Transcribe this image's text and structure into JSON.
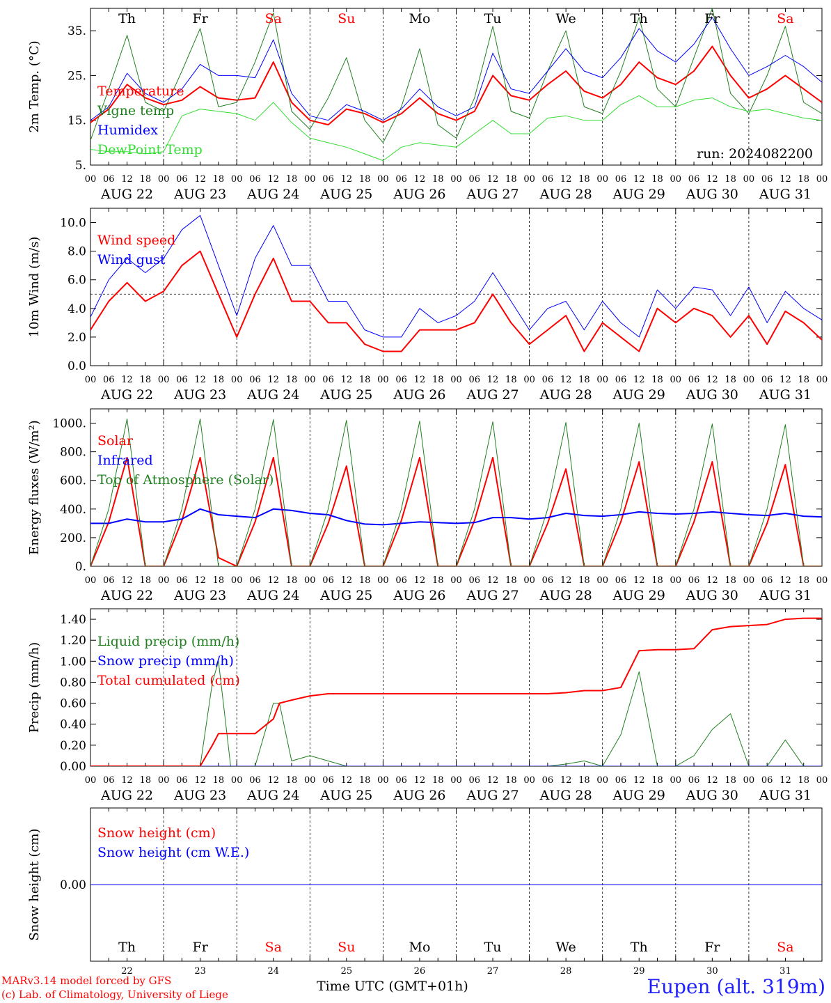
{
  "run_label": "run: 2024082200",
  "x_axis_title": "Time UTC (GMT+01h)",
  "model_credit": "MARv3.14 model forced by GFS",
  "lab_credit": "(c) Lab. of Climatology, University of Liege",
  "station_label": "Eupen (alt. 319m)",
  "colors": {
    "red": "#ff0000",
    "green": "#00a000",
    "darkgreen": "#208020",
    "blue": "#0000ff",
    "lightgreen": "#33dd33",
    "purple": "#800080"
  },
  "days": [
    {
      "abbr": "Th",
      "date": "AUG 22",
      "num": "22",
      "weekend": false
    },
    {
      "abbr": "Fr",
      "date": "AUG 23",
      "num": "23",
      "weekend": false
    },
    {
      "abbr": "Sa",
      "date": "AUG 24",
      "num": "24",
      "weekend": true
    },
    {
      "abbr": "Su",
      "date": "AUG 25",
      "num": "25",
      "weekend": true
    },
    {
      "abbr": "Mo",
      "date": "AUG 26",
      "num": "26",
      "weekend": false
    },
    {
      "abbr": "Tu",
      "date": "AUG 27",
      "num": "27",
      "weekend": false
    },
    {
      "abbr": "We",
      "date": "AUG 28",
      "num": "28",
      "weekend": false
    },
    {
      "abbr": "Th",
      "date": "AUG 29",
      "num": "29",
      "weekend": false
    },
    {
      "abbr": "Fr",
      "date": "AUG 30",
      "num": "30",
      "weekend": false
    },
    {
      "abbr": "Sa",
      "date": "AUG 31",
      "num": "31",
      "weekend": true
    }
  ],
  "hour_ticks": [
    "00",
    "06",
    "12",
    "18"
  ],
  "chart_data": [
    {
      "type": "line",
      "ylabel": "2m Temp. (°C)",
      "ylim": [
        5,
        40
      ],
      "yticks": [
        5,
        15,
        25,
        35
      ],
      "ytick_labels": [
        "5.",
        "15.",
        "25.",
        "35."
      ],
      "x_unit": "hours since AUG 22 00 UTC",
      "x": [
        0,
        6,
        12,
        18,
        24,
        30,
        36,
        42,
        48,
        54,
        60,
        66,
        72,
        78,
        84,
        90,
        96,
        102,
        108,
        114,
        120,
        126,
        132,
        138,
        144,
        150,
        156,
        162,
        168,
        174,
        180,
        186,
        192,
        198,
        204,
        210,
        216,
        222,
        228,
        234,
        240
      ],
      "series": [
        {
          "name": "Temperature",
          "color": "#ff0000",
          "width": 2,
          "values": [
            14.5,
            17.5,
            23,
            20,
            18.5,
            19.5,
            22.5,
            20,
            19.5,
            20,
            28,
            19,
            15,
            14,
            17.5,
            16.5,
            14.5,
            16.5,
            20,
            16.5,
            15,
            17,
            25,
            20.5,
            19.5,
            23,
            26,
            21.5,
            20,
            23,
            28,
            24.5,
            23,
            26,
            31.5,
            25,
            20,
            22,
            25,
            22,
            19
          ]
        },
        {
          "name": "Vigne temp",
          "color": "#208020",
          "width": 1,
          "values": [
            10.5,
            22,
            34,
            19,
            17,
            26,
            35.5,
            18,
            19,
            28,
            39,
            17,
            13,
            20,
            29,
            15,
            10,
            18,
            31,
            14,
            11,
            20,
            36,
            17,
            15.5,
            26,
            35,
            18,
            16.5,
            26,
            38,
            22,
            18,
            29,
            40,
            21,
            16.5,
            25,
            36,
            19,
            16.5
          ]
        },
        {
          "name": "Humidex",
          "color": "#0000ff",
          "width": 1,
          "values": [
            15,
            18,
            25.5,
            21,
            19,
            22,
            27.5,
            25,
            25,
            24.5,
            33,
            21,
            16,
            15,
            18.5,
            17,
            15,
            17.5,
            22,
            18,
            16,
            18,
            30,
            22,
            21,
            26,
            31,
            26,
            24.5,
            29,
            35.5,
            30.5,
            28,
            32,
            38,
            31,
            25,
            27,
            29.5,
            27,
            23.5
          ]
        },
        {
          "name": "DewPoint Temp",
          "color": "#33dd33",
          "width": 1,
          "values": [
            8.5,
            8,
            8,
            7.5,
            8,
            16,
            17.5,
            17,
            16.5,
            15,
            19,
            14.5,
            11,
            10,
            9,
            7.5,
            6,
            9,
            10,
            9.5,
            9,
            12,
            15,
            12,
            12,
            15.5,
            16,
            15,
            15,
            18.5,
            20.5,
            18,
            18,
            19.5,
            20,
            18,
            17,
            17.5,
            16.5,
            15.5,
            15
          ]
        }
      ]
    },
    {
      "type": "line",
      "ylabel": "10m Wind (m/s)",
      "ylim": [
        0,
        11
      ],
      "yticks": [
        0,
        2,
        4,
        6,
        8,
        10
      ],
      "ytick_labels": [
        "0.0",
        "2.0",
        "4.0",
        "6.0",
        "8.0",
        "10.0"
      ],
      "hline": 5,
      "x_unit": "hours since AUG 22 00 UTC",
      "x": [
        0,
        6,
        12,
        18,
        24,
        30,
        36,
        42,
        48,
        54,
        60,
        66,
        72,
        78,
        84,
        90,
        96,
        102,
        108,
        114,
        120,
        126,
        132,
        138,
        144,
        150,
        156,
        162,
        168,
        174,
        180,
        186,
        192,
        198,
        204,
        210,
        216,
        222,
        228,
        234,
        240
      ],
      "series": [
        {
          "name": "Wind speed",
          "color": "#ff0000",
          "width": 2,
          "values": [
            2.5,
            4.5,
            5.8,
            4.5,
            5.2,
            7,
            8,
            5,
            2,
            5,
            7.5,
            4.5,
            4.5,
            3,
            3,
            1.5,
            1,
            1,
            2.5,
            2.5,
            2.5,
            3,
            5,
            3,
            1.5,
            2.5,
            3.5,
            1,
            3,
            2,
            1,
            4,
            3,
            4,
            3.5,
            2,
            3.5,
            1.5,
            3.8,
            3,
            1.8
          ]
        },
        {
          "name": "Wind gust",
          "color": "#0000ff",
          "width": 1,
          "values": [
            3.4,
            6,
            7.5,
            6.5,
            7.5,
            9.5,
            10.5,
            7,
            3.5,
            7.5,
            9.8,
            7,
            7,
            4.5,
            4.5,
            2.5,
            2,
            2,
            4,
            3,
            3.5,
            4.5,
            6.5,
            4.5,
            2.5,
            4,
            4.5,
            2.5,
            4.5,
            3,
            2,
            5.3,
            4,
            5.5,
            5.3,
            3.5,
            5.5,
            3,
            5.2,
            4,
            3.2
          ]
        }
      ]
    },
    {
      "type": "line",
      "ylabel": "Energy fluxes (W/m²)",
      "ylim": [
        0,
        1100
      ],
      "yticks": [
        0,
        200,
        400,
        600,
        800,
        1000
      ],
      "ytick_labels": [
        "0.",
        "200.",
        "400.",
        "600.",
        "800.",
        "1000."
      ],
      "x_unit": "hours since AUG 22 00 UTC",
      "x": [
        0,
        6,
        12,
        18,
        24,
        30,
        36,
        42,
        48,
        54,
        60,
        66,
        72,
        78,
        84,
        90,
        96,
        102,
        108,
        114,
        120,
        126,
        132,
        138,
        144,
        150,
        156,
        162,
        168,
        174,
        180,
        186,
        192,
        198,
        204,
        210,
        216,
        222,
        228,
        234,
        240
      ],
      "series": [
        {
          "name": "Solar",
          "color": "#ff0000",
          "width": 2,
          "values": [
            0,
            310,
            760,
            0,
            0,
            320,
            760,
            60,
            0,
            310,
            760,
            0,
            0,
            300,
            700,
            0,
            0,
            320,
            760,
            0,
            0,
            320,
            760,
            0,
            0,
            300,
            680,
            0,
            0,
            310,
            730,
            0,
            0,
            310,
            730,
            0,
            0,
            300,
            710,
            0,
            0
          ]
        },
        {
          "name": "Infrared",
          "color": "#0000ff",
          "width": 2,
          "values": [
            300,
            300,
            330,
            310,
            310,
            330,
            400,
            360,
            350,
            340,
            400,
            390,
            370,
            360,
            320,
            295,
            290,
            300,
            310,
            305,
            300,
            305,
            340,
            340,
            330,
            340,
            370,
            355,
            350,
            360,
            380,
            370,
            365,
            370,
            380,
            370,
            360,
            355,
            370,
            350,
            345
          ]
        },
        {
          "name": "Top of Atmosphere (Solar)",
          "color": "#208020",
          "width": 1,
          "values": [
            0,
            400,
            1030,
            0,
            0,
            400,
            1030,
            0,
            0,
            400,
            1025,
            0,
            0,
            400,
            1020,
            0,
            0,
            400,
            1015,
            0,
            0,
            400,
            1010,
            0,
            0,
            400,
            1005,
            0,
            0,
            400,
            1000,
            0,
            0,
            400,
            995,
            0,
            0,
            400,
            990,
            0,
            0
          ]
        }
      ]
    },
    {
      "type": "line",
      "ylabel": "Precip (mm/h)",
      "ylim": [
        0,
        1.5
      ],
      "yticks": [
        0,
        0.2,
        0.4,
        0.6,
        0.8,
        1.0,
        1.2,
        1.4
      ],
      "ytick_labels": [
        "0.00",
        "0.20",
        "0.40",
        "0.60",
        "0.80",
        "1.00",
        "1.20",
        "1.40"
      ],
      "x_unit": "hours since AUG 22 00 UTC",
      "x": [
        0,
        6,
        12,
        18,
        24,
        30,
        36,
        40,
        42,
        44,
        46,
        48,
        54,
        60,
        62,
        66,
        72,
        78,
        84,
        90,
        96,
        102,
        108,
        114,
        120,
        126,
        132,
        138,
        144,
        150,
        156,
        162,
        168,
        174,
        180,
        186,
        192,
        198,
        204,
        210,
        216,
        222,
        228,
        234,
        240
      ],
      "series": [
        {
          "name": "Liquid precip (mm/h)",
          "color": "#208020",
          "width": 1,
          "values": [
            0,
            0,
            0,
            0,
            0,
            0,
            0,
            0.8,
            1.0,
            0.5,
            0,
            0,
            0,
            0.6,
            0.6,
            0.05,
            0.1,
            0.05,
            0,
            0,
            0,
            0,
            0,
            0,
            0,
            0,
            0,
            0,
            0,
            0,
            0.02,
            0.05,
            0,
            0.3,
            0.9,
            0,
            0,
            0.1,
            0.35,
            0.5,
            0,
            0,
            0.25,
            0,
            0
          ]
        },
        {
          "name": "Snow precip (mm/h)",
          "color": "#0000ff",
          "width": 1,
          "values": [
            0,
            0,
            0,
            0,
            0,
            0,
            0,
            0,
            0,
            0,
            0,
            0,
            0,
            0,
            0,
            0,
            0,
            0,
            0,
            0,
            0,
            0,
            0,
            0,
            0,
            0,
            0,
            0,
            0,
            0,
            0,
            0,
            0,
            0,
            0,
            0,
            0,
            0,
            0,
            0,
            0,
            0,
            0,
            0,
            0
          ]
        },
        {
          "name": "Total cumulated (cm)",
          "color": "#ff0000",
          "width": 2,
          "values": [
            0,
            0,
            0,
            0,
            0,
            0,
            0,
            0.2,
            0.31,
            0.31,
            0.31,
            0.31,
            0.31,
            0.45,
            0.6,
            0.63,
            0.67,
            0.69,
            0.69,
            0.69,
            0.69,
            0.69,
            0.69,
            0.69,
            0.69,
            0.69,
            0.69,
            0.69,
            0.69,
            0.69,
            0.7,
            0.72,
            0.72,
            0.75,
            1.1,
            1.11,
            1.11,
            1.12,
            1.3,
            1.33,
            1.34,
            1.35,
            1.4,
            1.41,
            1.41
          ]
        }
      ]
    },
    {
      "type": "line",
      "ylabel": "Snow height (cm)",
      "ylim": [
        -1,
        1
      ],
      "yticks": [
        0
      ],
      "ytick_labels": [
        "0.00"
      ],
      "x_unit": "hours since AUG 22 00 UTC",
      "x": [
        0,
        240
      ],
      "series": [
        {
          "name": "Snow height (cm)",
          "color": "#ff0000",
          "width": 1,
          "values": [
            0,
            0
          ]
        },
        {
          "name": "Snow height (cm W.E.)",
          "color": "#0000ff",
          "width": 1,
          "values": [
            0,
            0
          ]
        }
      ]
    }
  ]
}
